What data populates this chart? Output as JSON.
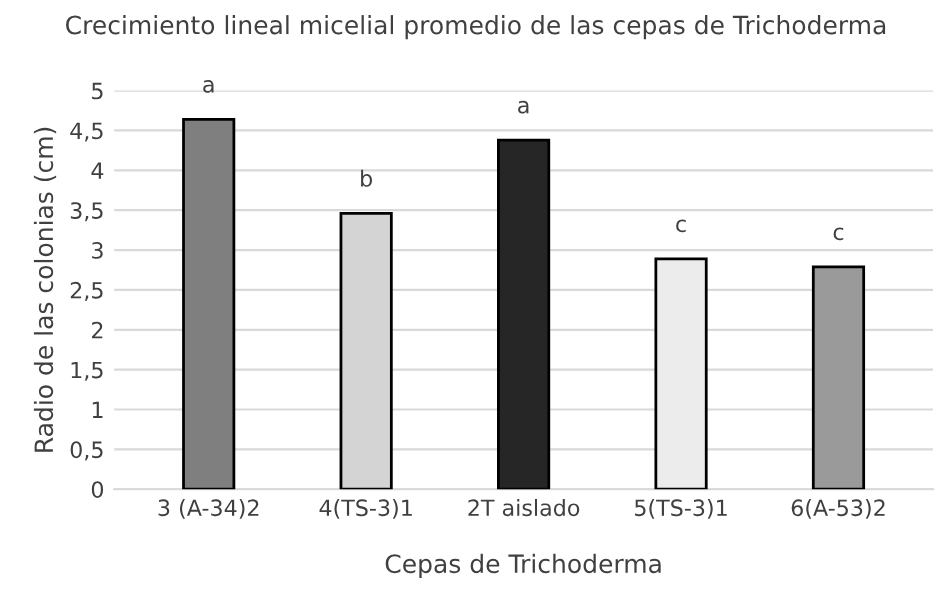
{
  "chart_data": {
    "type": "bar",
    "title": "Crecimiento lineal micelial promedio de las cepas de Trichoderma",
    "xlabel": "Cepas de Trichoderma",
    "ylabel": "Radio de las colonias (cm)",
    "categories": [
      "3 (A-34)2",
      "4(TS-3)1",
      "2T aislado",
      "5(TS-3)1",
      "6(A-53)2"
    ],
    "values": [
      4.64,
      3.46,
      4.38,
      2.89,
      2.79
    ],
    "value_labels": [
      "a",
      "b",
      "a",
      "c",
      "c"
    ],
    "colors": [
      "#7f7f7f",
      "#d4d4d4",
      "#262626",
      "#ececec",
      "#9a9a9a"
    ],
    "ylim": [
      0,
      5
    ],
    "yticks": [
      0,
      {
        "value": 0.5,
        "label": "0,5"
      },
      1,
      {
        "value": 1.5,
        "label": "1,5"
      },
      2,
      {
        "value": 2.5,
        "label": "2,5"
      },
      3,
      {
        "value": 3.5,
        "label": "3,5"
      },
      4,
      {
        "value": 4.5,
        "label": "4,5"
      },
      5
    ],
    "grid": "y"
  }
}
